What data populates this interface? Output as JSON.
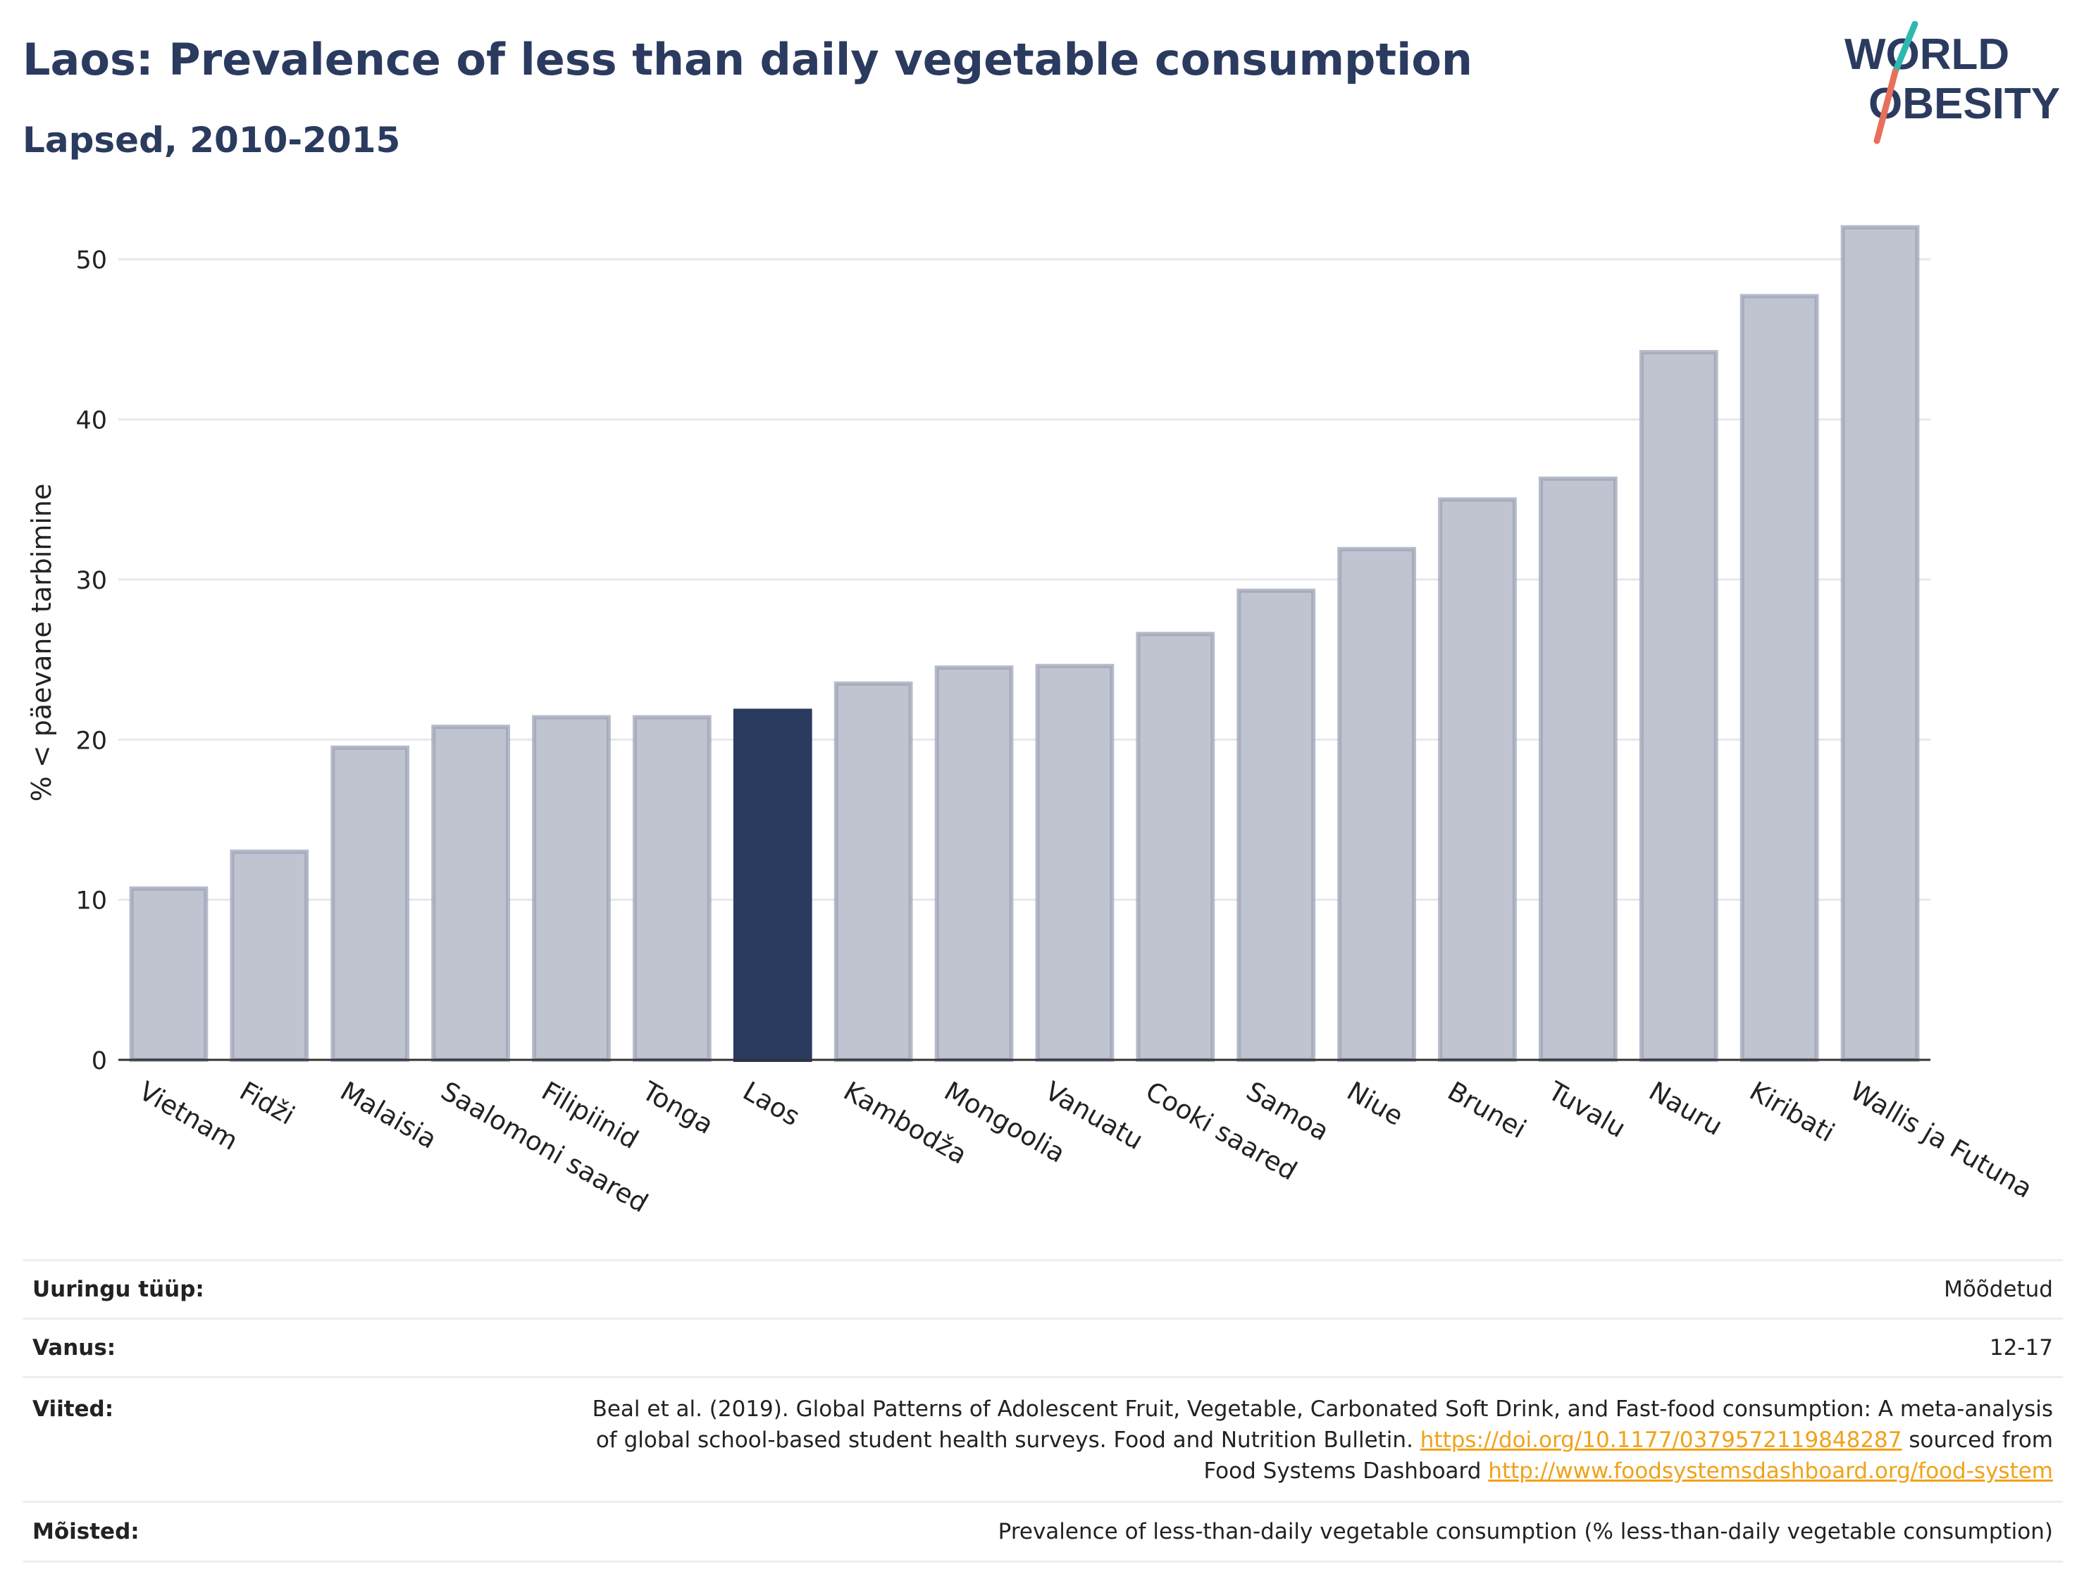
{
  "title": "Laos: Prevalence of less than daily vegetable consumption",
  "subtitle": "Lapsed, 2010-2015",
  "logo": {
    "line1": "WORLD",
    "line2": "OBESITY"
  },
  "chart_data": {
    "type": "bar",
    "title": "Laos: Prevalence of less than daily vegetable consumption",
    "subtitle": "Lapsed, 2010-2015",
    "xlabel": "",
    "ylabel": "% < päevane tarbimine",
    "ylim": [
      0,
      53
    ],
    "yticks": [
      0,
      10,
      20,
      30,
      40,
      50
    ],
    "grid": true,
    "categories": [
      "Vietnam",
      "Fidži",
      "Malaisia",
      "Saalomoni saared",
      "Filipiinid",
      "Tonga",
      "Laos",
      "Kambodža",
      "Mongoolia",
      "Vanuatu",
      "Cooki saared",
      "Samoa",
      "Niue",
      "Brunei",
      "Tuvalu",
      "Nauru",
      "Kiribati",
      "Wallis ja Futuna"
    ],
    "values": [
      10.7,
      13.0,
      19.5,
      20.8,
      21.4,
      21.4,
      21.8,
      23.5,
      24.5,
      24.6,
      26.6,
      29.3,
      31.9,
      35.0,
      36.3,
      44.2,
      47.7,
      52.0
    ],
    "highlight": "Laos",
    "colors": {
      "highlight": "#2b3a5f",
      "default": "#c0c3d0",
      "default_border": "#9ea4b8"
    }
  },
  "info": {
    "survey_type": {
      "label": "Uuringu tüüp:",
      "value": "Mõõdetud"
    },
    "age": {
      "label": "Vanus:",
      "value": "12-17"
    },
    "references": {
      "label": "Viited:",
      "text1": "Beal et al. (2019). Global Patterns of Adolescent Fruit, Vegetable, Carbonated Soft Drink, and Fast-food consumption: A meta-analysis",
      "text2": "of global school-based student health surveys. Food and Nutrition Bulletin.",
      "link1": "https://doi.org/10.1177/0379572119848287",
      "text3": "sourced from",
      "text4": "Food Systems Dashboard",
      "link2": "http://www.foodsystemsdashboard.org/food-system"
    },
    "definitions": {
      "label": "Mõisted:",
      "value": "Prevalence of less-than-daily vegetable consumption (% less-than-daily vegetable consumption)"
    }
  }
}
